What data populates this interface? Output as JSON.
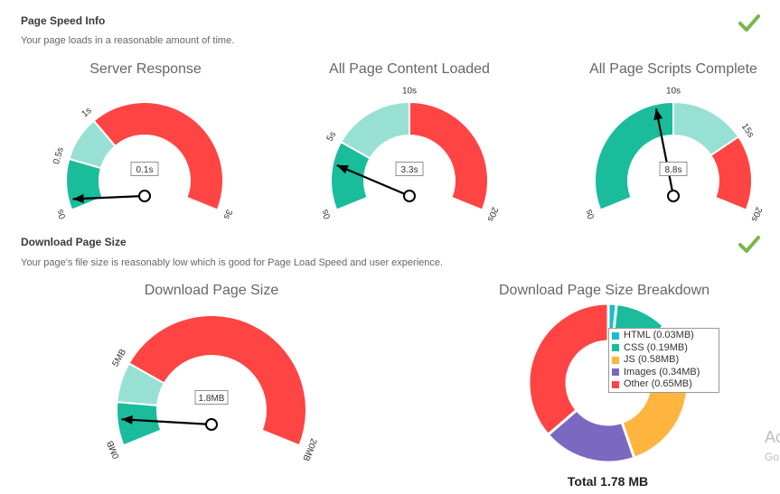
{
  "speed_section": {
    "title": "Page Speed Info",
    "description": "Your page loads in a reasonable amount of time.",
    "status_icon": "check-icon",
    "status_color": "#7ab648"
  },
  "size_section": {
    "title": "Download Page Size",
    "description": "Your page's file size is reasonably low which is good for Page Load Speed and user experience.",
    "status_icon": "check-icon",
    "status_color": "#7ab648"
  },
  "colors": {
    "good": "#1abc9c",
    "ok": "#99e0d4",
    "bad": "#ff4444"
  },
  "chart_data": [
    {
      "type": "gauge",
      "title": "Server Response",
      "min": 0,
      "max": 3,
      "bands": [
        {
          "from": 0,
          "to": 0.5,
          "color": "#1abc9c"
        },
        {
          "from": 0.5,
          "to": 1,
          "color": "#99e0d4"
        },
        {
          "from": 1,
          "to": 3,
          "color": "#ff4444"
        }
      ],
      "tick_values": [
        0,
        0.5,
        1,
        3
      ],
      "tick_labels": [
        "0s",
        "0.5s",
        "1s",
        "3s"
      ],
      "value": 0.1,
      "value_label": "0.1s"
    },
    {
      "type": "gauge",
      "title": "All Page Content Loaded",
      "min": 0,
      "max": 20,
      "bands": [
        {
          "from": 0,
          "to": 5,
          "color": "#1abc9c"
        },
        {
          "from": 5,
          "to": 10,
          "color": "#99e0d4"
        },
        {
          "from": 10,
          "to": 20,
          "color": "#ff4444"
        }
      ],
      "tick_values": [
        0,
        5,
        10,
        20
      ],
      "tick_labels": [
        "0s",
        "5s",
        "10s",
        "20s"
      ],
      "value": 3.3,
      "value_label": "3.3s"
    },
    {
      "type": "gauge",
      "title": "All Page Scripts Complete",
      "min": 0,
      "max": 20,
      "bands": [
        {
          "from": 0,
          "to": 10,
          "color": "#1abc9c"
        },
        {
          "from": 10,
          "to": 15,
          "color": "#99e0d4"
        },
        {
          "from": 15,
          "to": 20,
          "color": "#ff4444"
        }
      ],
      "tick_values": [
        0,
        10,
        15,
        20
      ],
      "tick_labels": [
        "0s",
        "10s",
        "15s",
        "20s"
      ],
      "value": 8.8,
      "value_label": "8.8s"
    },
    {
      "type": "gauge",
      "title": "Download Page Size",
      "min": 0,
      "max": 20,
      "bands": [
        {
          "from": 0,
          "to": 3,
          "color": "#1abc9c"
        },
        {
          "from": 3,
          "to": 5,
          "color": "#99e0d4"
        },
        {
          "from": 5,
          "to": 20,
          "color": "#ff4444"
        }
      ],
      "tick_values": [
        0,
        5,
        20
      ],
      "tick_labels": [
        "0MB",
        "5MB",
        "20MB"
      ],
      "value": 1.8,
      "value_label": "1.8MB"
    },
    {
      "type": "pie",
      "donut": true,
      "title": "Download Page Size Breakdown",
      "total_label": "Total 1.78 MB",
      "legend_position": "top-right",
      "slices": [
        {
          "label": "HTML (0.03MB)",
          "value": 0.03,
          "color": "#17becf"
        },
        {
          "label": "CSS (0.19MB)",
          "value": 0.19,
          "color": "#1abc9c"
        },
        {
          "label": "JS (0.58MB)",
          "value": 0.58,
          "color": "#ffb53f"
        },
        {
          "label": "Images (0.34MB)",
          "value": 0.34,
          "color": "#7b68c0"
        },
        {
          "label": "Other (0.65MB)",
          "value": 0.65,
          "color": "#ff4444"
        }
      ]
    }
  ],
  "side_clip": {
    "line1": "Ac",
    "line2": "Go"
  }
}
